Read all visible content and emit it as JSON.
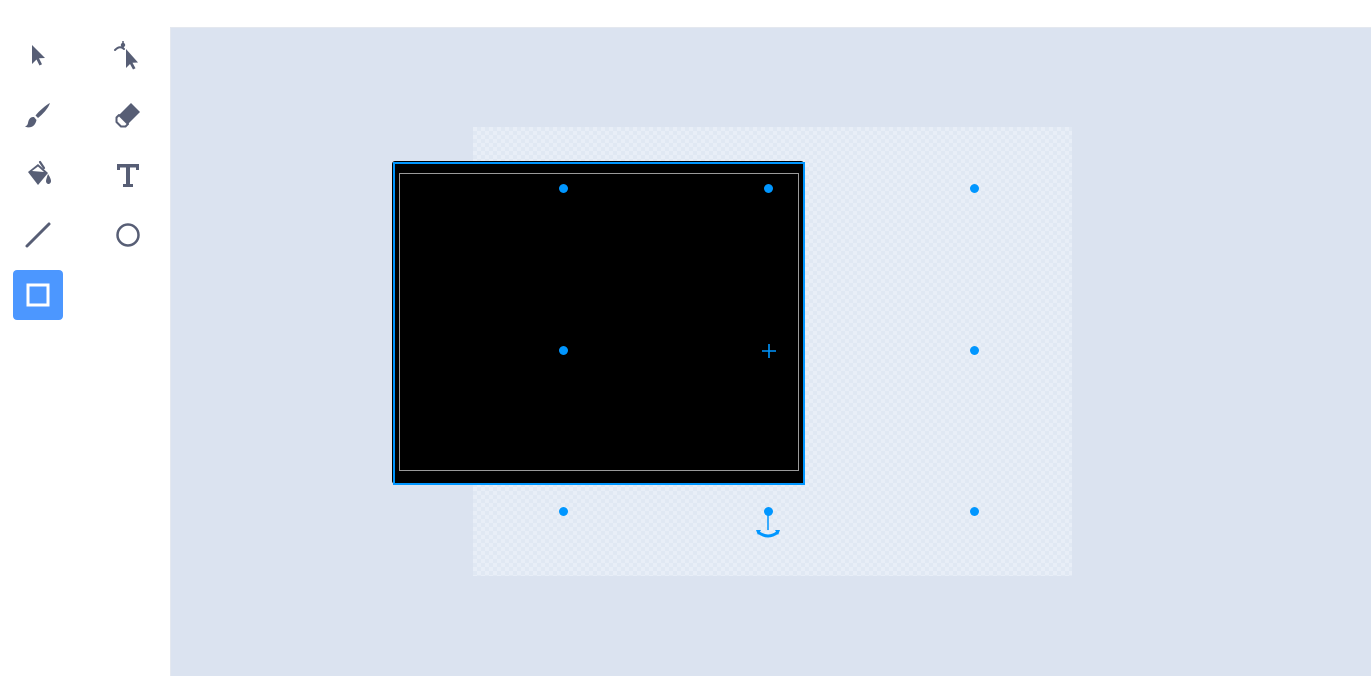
{
  "tools": [
    {
      "id": "select",
      "icon": "select-arrow-icon",
      "selected": false
    },
    {
      "id": "reshape",
      "icon": "reshape-arrow-icon",
      "selected": false
    },
    {
      "id": "brush",
      "icon": "brush-icon",
      "selected": false
    },
    {
      "id": "eraser",
      "icon": "eraser-icon",
      "selected": false
    },
    {
      "id": "fill",
      "icon": "fill-bucket-icon",
      "selected": false
    },
    {
      "id": "text",
      "icon": "text-icon",
      "selected": false
    },
    {
      "id": "line",
      "icon": "line-icon",
      "selected": false
    },
    {
      "id": "circle",
      "icon": "circle-icon",
      "selected": false
    },
    {
      "id": "rectangle",
      "icon": "rectangle-icon",
      "selected": true
    }
  ],
  "colors": {
    "accent": "#4c97ff",
    "selection": "#0096ff",
    "icon": "#575e75",
    "stage_bg": "#dbe3f0",
    "shape_fill": "#000000"
  },
  "canvas": {
    "shape": "rectangle",
    "shape_fill": "#000000",
    "selected": true
  }
}
